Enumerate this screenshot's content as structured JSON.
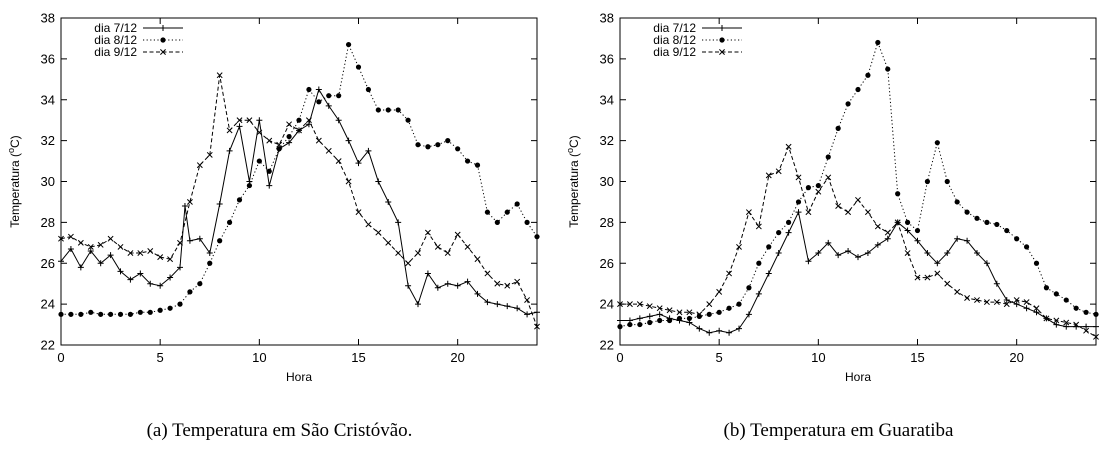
{
  "chart_data": [
    {
      "type": "line",
      "caption": "(a) Temperatura em São Cristóvão.",
      "xlabel": "Hora",
      "ylabel_main": "Temperatura (",
      "ylabel_sup": "o",
      "ylabel_end": "C)",
      "xlim": [
        0,
        24
      ],
      "ylim": [
        22,
        38
      ],
      "xticks": [
        0,
        5,
        10,
        15,
        20
      ],
      "yticks": [
        22,
        24,
        26,
        28,
        30,
        32,
        34,
        36,
        38
      ],
      "grid": false,
      "legend": "top-left",
      "series": [
        {
          "name": "dia 7/12",
          "style": "solid",
          "marker": "plus",
          "x": [
            0,
            0.5,
            1,
            1.5,
            2,
            2.5,
            3,
            3.5,
            4,
            4.5,
            5,
            5.5,
            6,
            6.25,
            6.5,
            7,
            7.5,
            8,
            8.5,
            9,
            9.5,
            10,
            10.5,
            11,
            11.5,
            12,
            12.5,
            13,
            13.5,
            14,
            14.5,
            15,
            15.5,
            16,
            16.5,
            17,
            17.5,
            18,
            18.5,
            19,
            19.5,
            20,
            20.5,
            21,
            21.5,
            22,
            22.5,
            23,
            23.5,
            24
          ],
          "y": [
            26.1,
            26.7,
            25.8,
            26.6,
            26.0,
            26.4,
            25.6,
            25.2,
            25.5,
            25.0,
            24.9,
            25.3,
            25.8,
            28.8,
            27.1,
            27.2,
            26.5,
            28.9,
            31.5,
            32.7,
            30.0,
            33.0,
            29.8,
            31.6,
            31.9,
            32.5,
            32.8,
            34.5,
            33.7,
            33.0,
            32.0,
            30.9,
            31.5,
            30.0,
            29.0,
            28.0,
            24.9,
            24.0,
            25.5,
            24.8,
            25.0,
            24.9,
            25.1,
            24.5,
            24.1,
            24.0,
            23.9,
            23.8,
            23.5,
            23.6
          ]
        },
        {
          "name": "dia 8/12",
          "style": "dotted",
          "marker": "dot",
          "x": [
            0,
            0.5,
            1,
            1.5,
            2,
            2.5,
            3,
            3.5,
            4,
            4.5,
            5,
            5.5,
            6,
            6.5,
            7,
            7.5,
            8,
            8.5,
            9,
            9.5,
            10,
            10.5,
            11,
            11.5,
            12,
            12.5,
            13,
            13.5,
            14,
            14.5,
            15,
            15.5,
            16,
            16.5,
            17,
            17.5,
            18,
            18.5,
            19,
            19.5,
            20,
            20.5,
            21,
            21.5,
            22,
            22.5,
            23,
            23.5,
            24
          ],
          "y": [
            23.5,
            23.5,
            23.5,
            23.6,
            23.5,
            23.5,
            23.5,
            23.5,
            23.6,
            23.6,
            23.7,
            23.8,
            24.0,
            24.6,
            25.0,
            26.0,
            27.1,
            28.0,
            29.1,
            29.8,
            31.0,
            30.5,
            31.6,
            32.2,
            33.0,
            34.5,
            33.9,
            34.2,
            34.2,
            36.7,
            35.6,
            34.5,
            33.5,
            33.5,
            33.5,
            33.0,
            31.8,
            31.7,
            31.8,
            32.0,
            31.6,
            31.0,
            30.8,
            28.5,
            28.0,
            28.5,
            28.9,
            28.0,
            27.3
          ]
        },
        {
          "name": "dia 9/12",
          "style": "dashed",
          "marker": "cross",
          "x": [
            0,
            0.5,
            1,
            1.5,
            2,
            2.5,
            3,
            3.5,
            4,
            4.5,
            5,
            5.5,
            6,
            6.5,
            7,
            7.5,
            8,
            8.5,
            9,
            9.5,
            10,
            10.5,
            11,
            11.5,
            12,
            12.5,
            13,
            13.5,
            14,
            14.5,
            15,
            15.5,
            16,
            16.5,
            17,
            17.5,
            18,
            18.5,
            19,
            19.5,
            20,
            20.5,
            21,
            21.5,
            22,
            22.5,
            23,
            23.5,
            24
          ],
          "y": [
            27.2,
            27.3,
            27.0,
            26.8,
            26.9,
            27.2,
            26.8,
            26.5,
            26.5,
            26.6,
            26.3,
            26.2,
            27.0,
            29.0,
            30.8,
            31.3,
            35.2,
            32.5,
            33.0,
            33.0,
            32.4,
            32.0,
            31.8,
            32.8,
            32.5,
            33.0,
            32.0,
            31.5,
            31.0,
            30.0,
            28.5,
            27.9,
            27.5,
            27.0,
            26.5,
            26.0,
            26.5,
            27.5,
            26.8,
            26.5,
            27.4,
            26.8,
            26.2,
            25.5,
            25.0,
            24.9,
            25.1,
            24.2,
            22.9
          ]
        }
      ]
    },
    {
      "type": "line",
      "caption": "(b) Temperatura em Guaratiba",
      "xlabel": "Hora",
      "ylabel_main": "Temperatura (",
      "ylabel_sup": "o",
      "ylabel_end": "C)",
      "xlim": [
        0,
        24
      ],
      "ylim": [
        22,
        38
      ],
      "xticks": [
        0,
        5,
        10,
        15,
        20
      ],
      "yticks": [
        22,
        24,
        26,
        28,
        30,
        32,
        34,
        36,
        38
      ],
      "grid": false,
      "legend": "top-left",
      "series": [
        {
          "name": "dia 7/12",
          "style": "solid",
          "marker": "plus",
          "x": [
            0,
            0.5,
            1,
            1.5,
            2,
            2.5,
            3,
            3.5,
            4,
            4.5,
            5,
            5.5,
            6,
            6.5,
            7,
            7.5,
            8,
            8.5,
            9,
            9.5,
            10,
            10.5,
            11,
            11.5,
            12,
            12.5,
            13,
            13.5,
            14,
            14.5,
            15,
            15.5,
            16,
            16.5,
            17,
            17.5,
            18,
            18.5,
            19,
            19.5,
            20,
            20.5,
            21,
            21.5,
            22,
            22.5,
            23,
            23.5,
            24
          ],
          "y": [
            23.2,
            23.2,
            23.3,
            23.4,
            23.5,
            23.3,
            23.2,
            23.1,
            22.8,
            22.6,
            22.7,
            22.6,
            22.8,
            23.5,
            24.5,
            25.5,
            26.5,
            27.5,
            28.5,
            26.1,
            26.5,
            27.0,
            26.4,
            26.6,
            26.3,
            26.5,
            26.9,
            27.2,
            28.0,
            27.6,
            27.1,
            26.5,
            26.0,
            26.5,
            27.2,
            27.1,
            26.5,
            26.0,
            25.0,
            24.2,
            24.0,
            23.8,
            23.6,
            23.3,
            23.0,
            22.9,
            22.9,
            22.9,
            22.9
          ]
        },
        {
          "name": "dia 8/12",
          "style": "dotted",
          "marker": "dot",
          "x": [
            0,
            0.5,
            1,
            1.5,
            2,
            2.5,
            3,
            3.5,
            4,
            4.5,
            5,
            5.5,
            6,
            6.5,
            7,
            7.5,
            8,
            8.5,
            9,
            9.5,
            10,
            10.5,
            11,
            11.5,
            12,
            12.5,
            13,
            13.5,
            14,
            14.5,
            15,
            15.5,
            16,
            16.5,
            17,
            17.5,
            18,
            18.5,
            19,
            19.5,
            20,
            20.5,
            21,
            21.5,
            22,
            22.5,
            23,
            23.5,
            24
          ],
          "y": [
            22.9,
            23.0,
            23.0,
            23.1,
            23.2,
            23.2,
            23.3,
            23.3,
            23.4,
            23.5,
            23.6,
            23.8,
            24.0,
            24.8,
            26.0,
            26.8,
            27.5,
            28.0,
            29.0,
            29.7,
            29.8,
            31.2,
            32.6,
            33.8,
            34.5,
            35.2,
            36.8,
            35.5,
            29.4,
            28.0,
            27.6,
            30.0,
            31.9,
            30.0,
            29.0,
            28.5,
            28.2,
            28.0,
            27.9,
            27.6,
            27.2,
            26.8,
            26.0,
            24.8,
            24.5,
            24.2,
            23.8,
            23.6,
            23.5
          ]
        },
        {
          "name": "dia 9/12",
          "style": "dashed",
          "marker": "cross",
          "x": [
            0,
            0.5,
            1,
            1.5,
            2,
            2.5,
            3,
            3.5,
            4,
            4.5,
            5,
            5.5,
            6,
            6.5,
            7,
            7.5,
            8,
            8.5,
            9,
            9.5,
            10,
            10.5,
            11,
            11.5,
            12,
            12.5,
            13,
            13.5,
            14,
            14.5,
            15,
            15.5,
            16,
            16.5,
            17,
            17.5,
            18,
            18.5,
            19,
            19.5,
            20,
            20.5,
            21,
            21.5,
            22,
            22.5,
            23,
            23.5,
            24
          ],
          "y": [
            24.0,
            24.0,
            24.0,
            23.9,
            23.8,
            23.7,
            23.6,
            23.6,
            23.5,
            24.0,
            24.6,
            25.5,
            26.8,
            28.5,
            27.8,
            30.3,
            30.5,
            31.7,
            30.2,
            28.5,
            29.5,
            30.2,
            28.8,
            28.5,
            29.1,
            28.5,
            27.8,
            27.5,
            28.0,
            26.5,
            25.3,
            25.3,
            25.5,
            25.0,
            24.6,
            24.3,
            24.2,
            24.1,
            24.1,
            24.0,
            24.2,
            24.1,
            23.8,
            23.3,
            23.2,
            23.1,
            23.0,
            22.7,
            22.4
          ]
        }
      ]
    }
  ]
}
